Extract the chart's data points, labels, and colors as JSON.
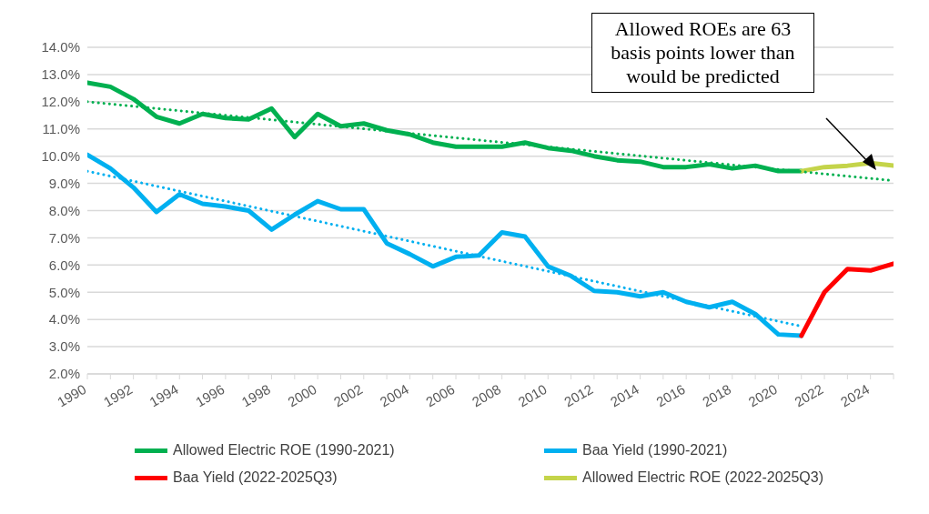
{
  "chart_data": {
    "type": "line",
    "series": [
      {
        "name": "Allowed Electric ROE (1990-2021)",
        "color": "#00b050",
        "x": [
          1990,
          1991,
          1992,
          1993,
          1994,
          1995,
          1996,
          1997,
          1998,
          1999,
          2000,
          2001,
          2002,
          2003,
          2004,
          2005,
          2006,
          2007,
          2008,
          2009,
          2010,
          2011,
          2012,
          2013,
          2014,
          2015,
          2016,
          2017,
          2018,
          2019,
          2020,
          2021
        ],
        "values": [
          12.7,
          12.55,
          12.1,
          11.45,
          11.2,
          11.55,
          11.4,
          11.35,
          11.75,
          10.7,
          11.55,
          11.1,
          11.2,
          10.95,
          10.8,
          10.5,
          10.35,
          10.35,
          10.35,
          10.5,
          10.3,
          10.2,
          10.0,
          9.85,
          9.8,
          9.6,
          9.6,
          9.7,
          9.55,
          9.65,
          9.45,
          9.45
        ]
      },
      {
        "name": "Baa Yield (1990-2021)",
        "color": "#00b0f0",
        "x": [
          1990,
          1991,
          1992,
          1993,
          1994,
          1995,
          1996,
          1997,
          1998,
          1999,
          2000,
          2001,
          2002,
          2003,
          2004,
          2005,
          2006,
          2007,
          2008,
          2009,
          2010,
          2011,
          2012,
          2013,
          2014,
          2015,
          2016,
          2017,
          2018,
          2019,
          2020,
          2021
        ],
        "values": [
          10.05,
          9.55,
          8.85,
          7.95,
          8.6,
          8.25,
          8.15,
          8.0,
          7.3,
          7.85,
          8.35,
          8.05,
          8.05,
          6.8,
          6.4,
          5.95,
          6.3,
          6.35,
          7.2,
          7.05,
          5.95,
          5.6,
          5.05,
          5.0,
          4.85,
          5.0,
          4.65,
          4.45,
          4.65,
          4.2,
          3.45,
          3.4
        ]
      },
      {
        "name": "Baa Yield (2022-2025Q3)",
        "color": "#ff0000",
        "x": [
          2021,
          2022,
          2023,
          2024,
          2025
        ],
        "values": [
          3.4,
          5.0,
          5.85,
          5.8,
          6.05
        ]
      },
      {
        "name": "Allowed Electric ROE (2022-2025Q3)",
        "color": "#c4d44a",
        "x": [
          2021,
          2022,
          2023,
          2024,
          2025
        ],
        "values": [
          9.45,
          9.6,
          9.65,
          9.75,
          9.65
        ]
      },
      {
        "color": "#00b050",
        "line_style": "dotted",
        "x": [
          1990,
          2025
        ],
        "values": [
          12.0,
          9.1
        ]
      },
      {
        "color": "#00b0f0",
        "line_style": "dotted",
        "x": [
          1990,
          2021
        ],
        "values": [
          9.45,
          3.75
        ]
      }
    ],
    "xlim": [
      1990,
      2025
    ],
    "xticks": [
      1990,
      {
        "value": 1991,
        "label": null
      },
      1992,
      {
        "value": 1993,
        "label": null
      },
      1994,
      {
        "value": 1995,
        "label": null
      },
      1996,
      {
        "value": 1997,
        "label": null
      },
      1998,
      {
        "value": 1999,
        "label": null
      },
      2000,
      {
        "value": 2001,
        "label": null
      },
      2002,
      {
        "value": 2003,
        "label": null
      },
      2004,
      {
        "value": 2005,
        "label": null
      },
      2006,
      {
        "value": 2007,
        "label": null
      },
      2008,
      {
        "value": 2009,
        "label": null
      },
      2010,
      {
        "value": 2011,
        "label": null
      },
      2012,
      {
        "value": 2013,
        "label": null
      },
      2014,
      {
        "value": 2015,
        "label": null
      },
      2016,
      {
        "value": 2017,
        "label": null
      },
      2018,
      {
        "value": 2019,
        "label": null
      },
      2020,
      {
        "value": 2021,
        "label": null
      },
      2022,
      {
        "value": 2023,
        "label": null
      },
      2024,
      {
        "value": 2025,
        "label": null
      }
    ],
    "ylim": [
      2,
      14
    ],
    "yticks": [
      {
        "value": 2,
        "label": "2.0%"
      },
      {
        "value": 3,
        "label": "3.0%"
      },
      {
        "value": 4,
        "label": "4.0%"
      },
      {
        "value": 5,
        "label": "5.0%"
      },
      {
        "value": 6,
        "label": "6.0%"
      },
      {
        "value": 7,
        "label": "7.0%"
      },
      {
        "value": 8,
        "label": "8.0%"
      },
      {
        "value": 9,
        "label": "9.0%"
      },
      {
        "value": 10,
        "label": "10.0%"
      },
      {
        "value": 11,
        "label": "11.0%"
      },
      {
        "value": 12,
        "label": "12.0%"
      },
      {
        "value": 13,
        "label": "13.0%"
      },
      {
        "value": 14,
        "label": "14.0%"
      }
    ],
    "grid": "y",
    "legend": "bottom",
    "marker": "none",
    "line_style": "solid",
    "annotations": [
      "Allowed ROEs are 63 basis points lower than would be predicted"
    ]
  }
}
